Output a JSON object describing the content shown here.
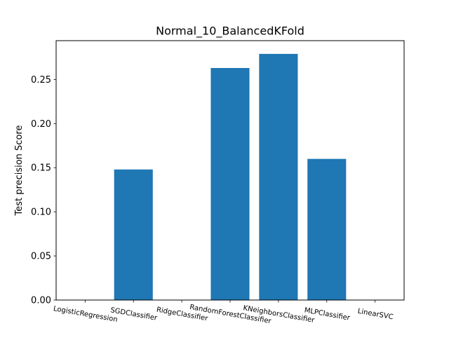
{
  "chart_data": {
    "type": "bar",
    "title": "Normal_10_BalancedKFold",
    "xlabel": "",
    "ylabel": "Test precision Score",
    "categories": [
      "LogisticRegression",
      "SGDClassifier",
      "RidgeClassifier",
      "RandomForestClassifier",
      "KNeighborsClassifier",
      "MLPClassifier",
      "LinearSVC"
    ],
    "values": [
      0.0,
      0.148,
      0.0,
      0.263,
      0.279,
      0.16,
      0.0
    ],
    "ylim": [
      0,
      0.294
    ],
    "yticks": [
      "0.00",
      "0.05",
      "0.10",
      "0.15",
      "0.20",
      "0.25"
    ],
    "bar_color": "#1f77b4",
    "grid": false,
    "legend": "none"
  }
}
